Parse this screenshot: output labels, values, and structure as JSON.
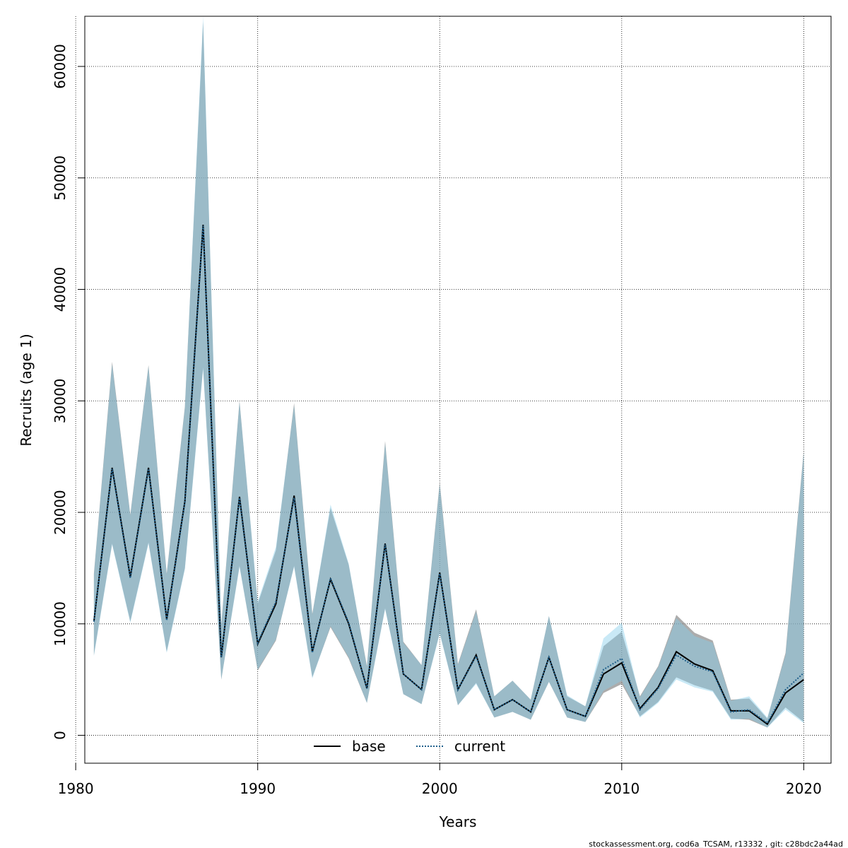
{
  "colors": {
    "base_line": "#000000",
    "base_band": "#808080",
    "current_line": "#1f5f8b",
    "current_band": "#87ceeb",
    "grid": "#000000"
  },
  "footer_text": "stockassessment.org, cod6a_TCSAM, r13332 , git: c28bdc2a44ad",
  "chart_data": {
    "type": "line",
    "xlabel": "Years",
    "ylabel": "Recruits (age 1)",
    "xlim": [
      1980.5,
      2021.5
    ],
    "ylim": [
      -2500,
      64500
    ],
    "x_ticks": [
      1980,
      1990,
      2000,
      2010,
      2020
    ],
    "y_ticks": [
      0,
      10000,
      20000,
      30000,
      40000,
      50000,
      60000
    ],
    "grid": true,
    "legend_position": "bottom",
    "x": [
      1981,
      1982,
      1983,
      1984,
      1985,
      1986,
      1987,
      1988,
      1989,
      1990,
      1991,
      1992,
      1993,
      1994,
      1995,
      1996,
      1997,
      1998,
      1999,
      2000,
      2001,
      2002,
      2003,
      2004,
      2005,
      2006,
      2007,
      2008,
      2009,
      2010,
      2011,
      2012,
      2013,
      2014,
      2015,
      2016,
      2017,
      2018,
      2019,
      2020
    ],
    "series": [
      {
        "name": "base",
        "line_style": "solid",
        "values": [
          10200,
          24000,
          14200,
          24000,
          10400,
          21000,
          45800,
          7000,
          21400,
          8200,
          11800,
          21500,
          7500,
          14000,
          10000,
          4200,
          17200,
          5500,
          4100,
          14600,
          4100,
          7200,
          2300,
          3200,
          2100,
          7000,
          2300,
          1700,
          5500,
          6500,
          2400,
          4300,
          7500,
          6400,
          5800,
          2200,
          2200,
          1000,
          3800,
          5000
        ],
        "lower": [
          7200,
          17200,
          10200,
          17300,
          7500,
          15000,
          33000,
          5000,
          15200,
          5800,
          8500,
          15200,
          5200,
          9700,
          6900,
          2900,
          11400,
          3700,
          2800,
          9200,
          2700,
          4700,
          1600,
          2100,
          1400,
          4800,
          1600,
          1200,
          3800,
          4600,
          1700,
          3000,
          5200,
          4500,
          4000,
          1500,
          1400,
          700,
          2500,
          1200
        ],
        "upper": [
          14500,
          33500,
          19800,
          33200,
          14500,
          29500,
          64000,
          10000,
          30000,
          11800,
          16600,
          29800,
          10900,
          20400,
          15300,
          6200,
          26400,
          8400,
          6300,
          22700,
          6400,
          11300,
          3500,
          4900,
          3200,
          10700,
          3500,
          2600,
          8000,
          9300,
          3500,
          6200,
          10800,
          9200,
          8500,
          3200,
          3300,
          1500,
          7400,
          25600
        ]
      },
      {
        "name": "current",
        "line_style": "dotted",
        "values": [
          10200,
          23900,
          14100,
          23900,
          10300,
          20900,
          45700,
          7000,
          21300,
          8300,
          12000,
          21300,
          7400,
          14100,
          10100,
          4200,
          17100,
          5500,
          4100,
          14500,
          4100,
          7100,
          2300,
          3200,
          2100,
          7000,
          2300,
          1700,
          5900,
          6900,
          2300,
          4200,
          7200,
          6200,
          5700,
          2100,
          2300,
          1100,
          4100,
          5600
        ],
        "lower": [
          7100,
          17100,
          10100,
          17200,
          7400,
          14900,
          32800,
          5000,
          15100,
          5900,
          8600,
          15100,
          5100,
          9800,
          7000,
          2900,
          11300,
          3700,
          2800,
          9100,
          2700,
          4600,
          1600,
          2100,
          1400,
          4800,
          1600,
          1200,
          4000,
          4900,
          1600,
          2900,
          5000,
          4300,
          3900,
          1400,
          1500,
          700,
          2300,
          1100
        ],
        "upper": [
          14400,
          33300,
          19700,
          33100,
          14400,
          29400,
          64500,
          9900,
          29900,
          12000,
          16900,
          29600,
          10800,
          20700,
          15400,
          6100,
          26200,
          8300,
          6300,
          22500,
          6300,
          11100,
          3500,
          4900,
          3200,
          10700,
          3600,
          2600,
          8700,
          10100,
          3400,
          6100,
          10500,
          8900,
          8300,
          3100,
          3500,
          1600,
          7200,
          25400
        ]
      }
    ]
  }
}
